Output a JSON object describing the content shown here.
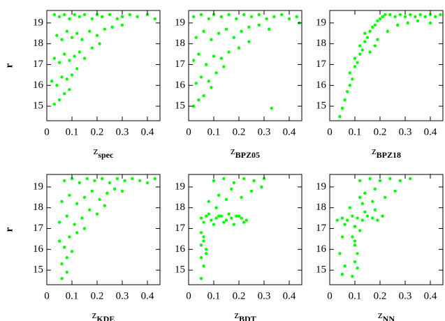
{
  "chart_data": [
    {
      "type": "scatter",
      "xlabel": "z",
      "xlabel_sub": "spec",
      "ylabel": "r",
      "color": "#00ff00",
      "xlim": [
        0,
        0.45
      ],
      "ylim": [
        14.3,
        19.6
      ],
      "xticks": [
        0,
        0.1,
        0.2,
        0.3,
        0.4
      ],
      "yticks": [
        15,
        16,
        17,
        18,
        19
      ],
      "x": [
        0.03,
        0.05,
        0.07,
        0.09,
        0.11,
        0.13,
        0.15,
        0.18,
        0.2,
        0.22,
        0.25,
        0.28,
        0.3,
        0.33,
        0.36,
        0.4,
        0.43,
        0.04,
        0.06,
        0.08,
        0.1,
        0.12,
        0.14,
        0.17,
        0.2,
        0.23,
        0.26,
        0.3,
        0.03,
        0.05,
        0.07,
        0.09,
        0.11,
        0.13,
        0.15,
        0.18,
        0.21,
        0.02,
        0.04,
        0.06,
        0.08,
        0.1,
        0.12,
        0.03,
        0.05,
        0.07,
        0.09
      ],
      "y": [
        19.4,
        19.3,
        19.4,
        19.2,
        19.4,
        19.3,
        19.4,
        19.2,
        19.4,
        19.3,
        19.4,
        19.2,
        19.3,
        19.4,
        19.3,
        19.4,
        19.2,
        18.4,
        18.2,
        18.6,
        18.3,
        18.5,
        18.2,
        18.6,
        18.4,
        18.7,
        18.8,
        18.9,
        17.3,
        17.1,
        17.5,
        17.2,
        17.4,
        17.6,
        17.3,
        17.8,
        18.0,
        16.2,
        16.0,
        16.4,
        16.3,
        16.5,
        16.8,
        15.1,
        15.3,
        15.6,
        15.8
      ]
    },
    {
      "type": "scatter",
      "xlabel": "z",
      "xlabel_sub": "BPZ05",
      "color": "#00ff00",
      "xlim": [
        0,
        0.45
      ],
      "ylim": [
        14.3,
        19.6
      ],
      "xticks": [
        0,
        0.1,
        0.2,
        0.3,
        0.4
      ],
      "yticks": [
        15,
        16,
        17,
        18,
        19
      ],
      "x": [
        0.02,
        0.05,
        0.08,
        0.1,
        0.13,
        0.16,
        0.19,
        0.22,
        0.25,
        0.28,
        0.31,
        0.34,
        0.37,
        0.4,
        0.43,
        0.44,
        0.03,
        0.06,
        0.09,
        0.12,
        0.15,
        0.18,
        0.21,
        0.24,
        0.28,
        0.32,
        0.02,
        0.04,
        0.07,
        0.1,
        0.13,
        0.16,
        0.2,
        0.24,
        0.03,
        0.05,
        0.08,
        0.11,
        0.14,
        0.02,
        0.04,
        0.06,
        0.09,
        0.33
      ],
      "y": [
        19.3,
        19.4,
        19.2,
        19.4,
        19.3,
        19.4,
        19.2,
        19.4,
        19.3,
        19.4,
        19.2,
        19.3,
        19.4,
        19.2,
        19.3,
        19.0,
        18.3,
        18.6,
        18.2,
        18.5,
        18.7,
        18.3,
        18.6,
        18.8,
        18.9,
        18.7,
        17.2,
        17.5,
        17.0,
        17.4,
        17.3,
        17.6,
        17.8,
        18.1,
        16.1,
        16.4,
        16.2,
        16.6,
        16.9,
        15.0,
        15.3,
        15.5,
        15.9,
        14.9
      ]
    },
    {
      "type": "scatter",
      "xlabel": "z",
      "xlabel_sub": "BPZ18",
      "color": "#00ff00",
      "xlim": [
        0,
        0.45
      ],
      "ylim": [
        14.3,
        19.6
      ],
      "xticks": [
        0,
        0.1,
        0.2,
        0.3,
        0.4
      ],
      "yticks": [
        15,
        16,
        17,
        18,
        19
      ],
      "x": [
        0.04,
        0.05,
        0.06,
        0.07,
        0.08,
        0.09,
        0.08,
        0.1,
        0.11,
        0.1,
        0.12,
        0.13,
        0.12,
        0.14,
        0.15,
        0.14,
        0.16,
        0.17,
        0.18,
        0.19,
        0.2,
        0.21,
        0.22,
        0.24,
        0.26,
        0.28,
        0.3,
        0.32,
        0.34,
        0.36,
        0.38,
        0.4,
        0.42,
        0.44,
        0.19,
        0.23,
        0.27,
        0.31,
        0.35,
        0.4,
        0.16,
        0.18
      ],
      "y": [
        14.5,
        14.9,
        15.3,
        15.7,
        16.0,
        16.3,
        16.6,
        16.9,
        17.1,
        17.3,
        17.5,
        17.7,
        17.9,
        18.1,
        18.3,
        18.5,
        18.6,
        18.8,
        18.9,
        19.1,
        19.2,
        19.3,
        19.4,
        19.4,
        19.3,
        19.4,
        19.3,
        19.4,
        19.3,
        19.4,
        19.3,
        19.4,
        19.3,
        19.4,
        18.2,
        18.6,
        18.9,
        19.0,
        19.1,
        19.0,
        17.6,
        17.9
      ]
    },
    {
      "type": "scatter",
      "xlabel": "z",
      "xlabel_sub": "KDE",
      "ylabel": "r",
      "color": "#00ff00",
      "xlim": [
        0,
        0.45
      ],
      "ylim": [
        14.3,
        19.6
      ],
      "xticks": [
        0,
        0.1,
        0.2,
        0.3,
        0.4
      ],
      "yticks": [
        15,
        16,
        17,
        18,
        19
      ],
      "x": [
        0.07,
        0.1,
        0.13,
        0.16,
        0.19,
        0.22,
        0.25,
        0.28,
        0.31,
        0.34,
        0.37,
        0.4,
        0.43,
        0.06,
        0.09,
        0.12,
        0.15,
        0.18,
        0.21,
        0.24,
        0.27,
        0.3,
        0.05,
        0.08,
        0.11,
        0.14,
        0.17,
        0.2,
        0.23,
        0.05,
        0.07,
        0.09,
        0.12,
        0.15,
        0.06,
        0.08,
        0.1,
        0.06,
        0.08
      ],
      "y": [
        19.3,
        19.4,
        19.2,
        19.4,
        19.3,
        19.4,
        19.2,
        19.4,
        19.3,
        19.4,
        19.3,
        19.2,
        19.4,
        18.3,
        18.6,
        18.2,
        18.5,
        18.8,
        18.4,
        18.7,
        18.9,
        18.8,
        17.3,
        17.6,
        17.2,
        17.5,
        17.9,
        17.7,
        18.1,
        16.4,
        16.1,
        16.6,
        16.8,
        17.0,
        15.3,
        15.6,
        15.9,
        14.6,
        14.9
      ]
    },
    {
      "type": "scatter",
      "xlabel": "z",
      "xlabel_sub": "BDT",
      "color": "#00ff00",
      "xlim": [
        0,
        0.45
      ],
      "ylim": [
        14.3,
        19.6
      ],
      "xticks": [
        0,
        0.1,
        0.2,
        0.3,
        0.4
      ],
      "yticks": [
        15,
        16,
        17,
        18,
        19
      ],
      "x": [
        0.05,
        0.07,
        0.09,
        0.11,
        0.13,
        0.15,
        0.17,
        0.19,
        0.21,
        0.23,
        0.06,
        0.08,
        0.1,
        0.12,
        0.14,
        0.16,
        0.18,
        0.2,
        0.22,
        0.05,
        0.06,
        0.07,
        0.05,
        0.06,
        0.05,
        0.06,
        0.07,
        0.05,
        0.1,
        0.14,
        0.18,
        0.22,
        0.26,
        0.3,
        0.12,
        0.17,
        0.21,
        0.25,
        0.29,
        0.08,
        0.11,
        0.15
      ],
      "y": [
        17.5,
        17.6,
        17.4,
        17.5,
        17.6,
        17.4,
        17.5,
        17.6,
        17.5,
        17.4,
        17.3,
        17.7,
        17.2,
        17.6,
        17.3,
        17.7,
        17.2,
        17.6,
        17.3,
        16.8,
        16.4,
        16.0,
        15.6,
        15.2,
        14.6,
        16.6,
        15.8,
        16.2,
        19.3,
        19.4,
        19.2,
        19.4,
        19.3,
        19.4,
        18.6,
        18.9,
        18.5,
        18.8,
        19.0,
        18.3,
        18.0,
        18.4
      ]
    },
    {
      "type": "scatter",
      "xlabel": "z",
      "xlabel_sub": "NN",
      "color": "#00ff00",
      "xlim": [
        0,
        0.45
      ],
      "ylim": [
        14.3,
        19.6
      ],
      "xticks": [
        0,
        0.1,
        0.2,
        0.3,
        0.4
      ],
      "yticks": [
        15,
        16,
        17,
        18,
        19
      ],
      "x": [
        0.05,
        0.07,
        0.09,
        0.11,
        0.13,
        0.15,
        0.17,
        0.19,
        0.21,
        0.06,
        0.1,
        0.14,
        0.18,
        0.09,
        0.1,
        0.11,
        0.1,
        0.12,
        0.11,
        0.09,
        0.1,
        0.03,
        0.05,
        0.04,
        0.06,
        0.05,
        0.12,
        0.16,
        0.2,
        0.24,
        0.28,
        0.32,
        0.14,
        0.18,
        0.22,
        0.26,
        0.13,
        0.17,
        0.08,
        0.12
      ],
      "y": [
        17.5,
        17.4,
        17.6,
        17.5,
        17.4,
        17.6,
        17.5,
        17.4,
        17.6,
        17.2,
        17.1,
        17.8,
        17.9,
        16.6,
        16.2,
        15.8,
        15.4,
        16.9,
        15.1,
        14.7,
        16.4,
        17.4,
        16.6,
        15.8,
        15.2,
        14.8,
        19.3,
        19.4,
        19.3,
        19.4,
        19.3,
        19.4,
        18.7,
        18.9,
        18.5,
        18.8,
        18.2,
        18.3,
        18.0,
        18.5
      ]
    }
  ]
}
